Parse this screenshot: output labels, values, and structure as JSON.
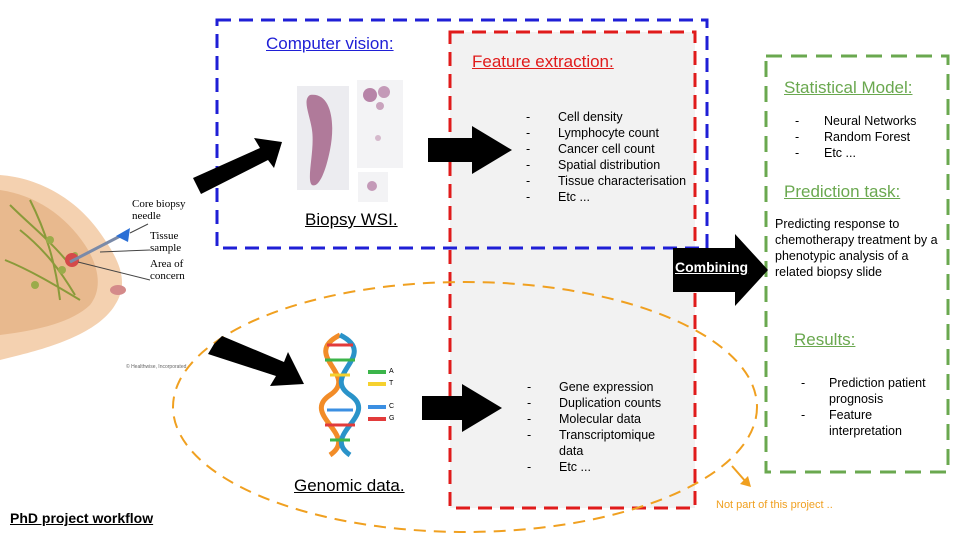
{
  "boxes": {
    "computer_vision_title": "Computer vision:",
    "feature_extraction_title": "Feature extraction:",
    "statistical_model_title": "Statistical Model:",
    "prediction_task_title": "Prediction task:",
    "results_title": "Results:"
  },
  "image_features": [
    "Cell density",
    "Lymphocyte count",
    "Cancer cell count",
    "Spatial distribution",
    "Tissue characterisation",
    "Etc ..."
  ],
  "genomic_features": [
    "Gene expression",
    "Duplication counts",
    "Molecular data",
    "Transcriptomique data",
    "Etc ..."
  ],
  "models": [
    "Neural Networks",
    "Random Forest",
    "Etc ..."
  ],
  "prediction_text": "Predicting response to chemotherapy treatment by a phenotypic analysis of a related biopsy slide",
  "results": [
    "Prediction patient prognosis",
    "Feature interpretation"
  ],
  "labels": {
    "biopsy": "Biopsy WSI.",
    "genomic": "Genomic data.",
    "combining": "Combining",
    "not_part": "Not part of this project ..",
    "workflow": "PhD project workflow"
  },
  "anatomy": {
    "needle": "Core biopsy needle",
    "tissue": "Tissue sample",
    "area": "Area of concern",
    "credit": "© Healthwise, Incorporated"
  },
  "dna_letters": [
    "A",
    "T",
    "C",
    "G"
  ],
  "colors": {
    "blue": "#1f1fd6",
    "red": "#e01b1b",
    "green": "#6aa84f",
    "orange": "#f0a020",
    "gray_fill": "#f2f2f2"
  }
}
